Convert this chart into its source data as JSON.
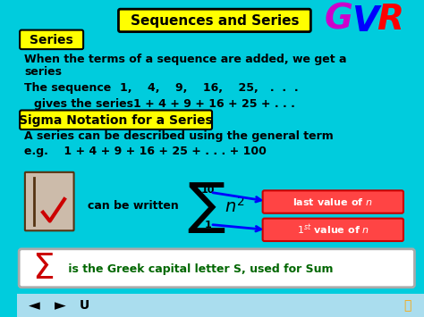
{
  "bg_color": "#00ccdd",
  "title_text": "Sequences and Series",
  "title_box_color": "#ffff00",
  "title_border_color": "#000000",
  "series_label": "Series",
  "series_label_bg": "#ffff00",
  "line1": "When the terms of a sequence are added, we get a series",
  "line2_label": "The sequence",
  "line2_values": "1,   4,   9,   16,   25,  .  .  .",
  "line3_label": "  gives the series",
  "line3_values": "1 + 4 + 9 + 16 + 25 + . . .",
  "sigma_label": "Sigma Notation for a Series",
  "sigma_label_bg": "#ffff00",
  "line4": "A series can be described using the general term",
  "line5_eg": "e.g.    1 + 4 + 9 + 16 + 25 + . . . + 100",
  "can_be_written": "can be written",
  "sigma_formula": "Σn²",
  "sigma_top": "10",
  "sigma_bottom": "1",
  "last_value_label": "last value of n",
  "first_value_label": "1ˢᵗ value of n",
  "bottom_sigma": "Σ",
  "bottom_text": " is the Greek capital letter S, used for Sum",
  "bottom_box_bg": "#ffffff",
  "bottom_sigma_color": "#cc0000",
  "bottom_text_color": "#006600",
  "red_box_bg": "#ff4444",
  "red_box_text_color": "#ffffff",
  "main_text_color": "#000000",
  "GVR_G": "#cc00cc",
  "GVR_V": "#0000ff",
  "GVR_R": "#ff0000"
}
